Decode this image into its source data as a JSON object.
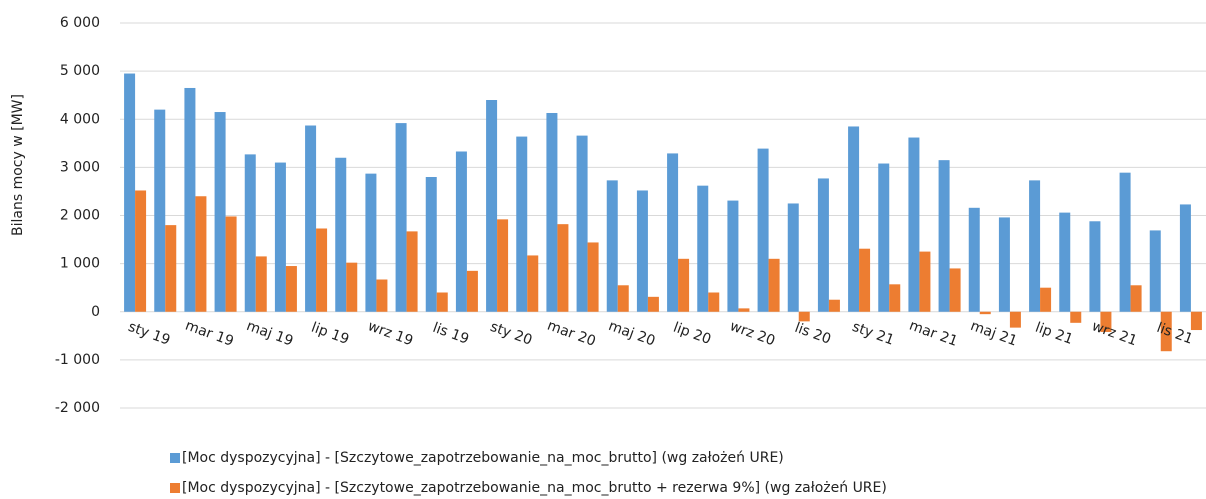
{
  "chart_data": {
    "type": "bar",
    "y_label": "Bilans mocy w [MW]",
    "categories": [
      "sty 19",
      null,
      "mar 19",
      null,
      "maj 19",
      null,
      "lip 19",
      null,
      "wrz 19",
      null,
      "lis 19",
      null,
      "sty 20",
      null,
      "mar 20",
      null,
      "maj 20",
      null,
      "lip 20",
      null,
      "wrz 20",
      null,
      "lis 20",
      null,
      "sty 21",
      null,
      "mar 21",
      null,
      "maj 21",
      null,
      "lip 21",
      null,
      "wrz 21",
      null,
      "lis 21",
      null
    ],
    "series": [
      {
        "name": "[Moc dyspozycyjna] - [Szczytowe_zapotrzebowanie_na_moc_brutto] (wg założeń URE)",
        "color": "#5b9bd5",
        "values": [
          4950,
          4200,
          4650,
          4150,
          3270,
          3100,
          3870,
          3200,
          2870,
          3920,
          2800,
          3330,
          4400,
          3640,
          4130,
          3660,
          2730,
          2520,
          3290,
          2620,
          2310,
          3390,
          2250,
          2770,
          3850,
          3080,
          3620,
          3150,
          2160,
          1960,
          2730,
          2060,
          1880,
          2890,
          1690,
          2230
        ]
      },
      {
        "name": "[Moc dyspozycyjna] - [Szczytowe_zapotrzebowanie_na_moc_brutto + rezerwa 9%] (wg założeń URE)",
        "color": "#ed7d31",
        "values": [
          2520,
          1800,
          2400,
          1980,
          1150,
          950,
          1730,
          1020,
          670,
          1670,
          400,
          850,
          1920,
          1170,
          1820,
          1440,
          550,
          310,
          1100,
          400,
          70,
          1100,
          -200,
          250,
          1310,
          570,
          1250,
          900,
          -50,
          -330,
          500,
          -230,
          -420,
          550,
          -820,
          -380
        ]
      }
    ],
    "ylim": [
      -2000,
      6000
    ],
    "yticks": [
      {
        "value": -2000,
        "label": "-2 000"
      },
      {
        "value": -1000,
        "label": "-1 000"
      },
      0,
      {
        "value": 1000,
        "label": "1 000"
      },
      {
        "value": 2000,
        "label": "2 000"
      },
      {
        "value": 3000,
        "label": "3 000"
      },
      {
        "value": 4000,
        "label": "4 000"
      },
      {
        "value": 5000,
        "label": "5 000"
      },
      {
        "value": 6000,
        "label": "6 000"
      }
    ],
    "grid": true
  }
}
